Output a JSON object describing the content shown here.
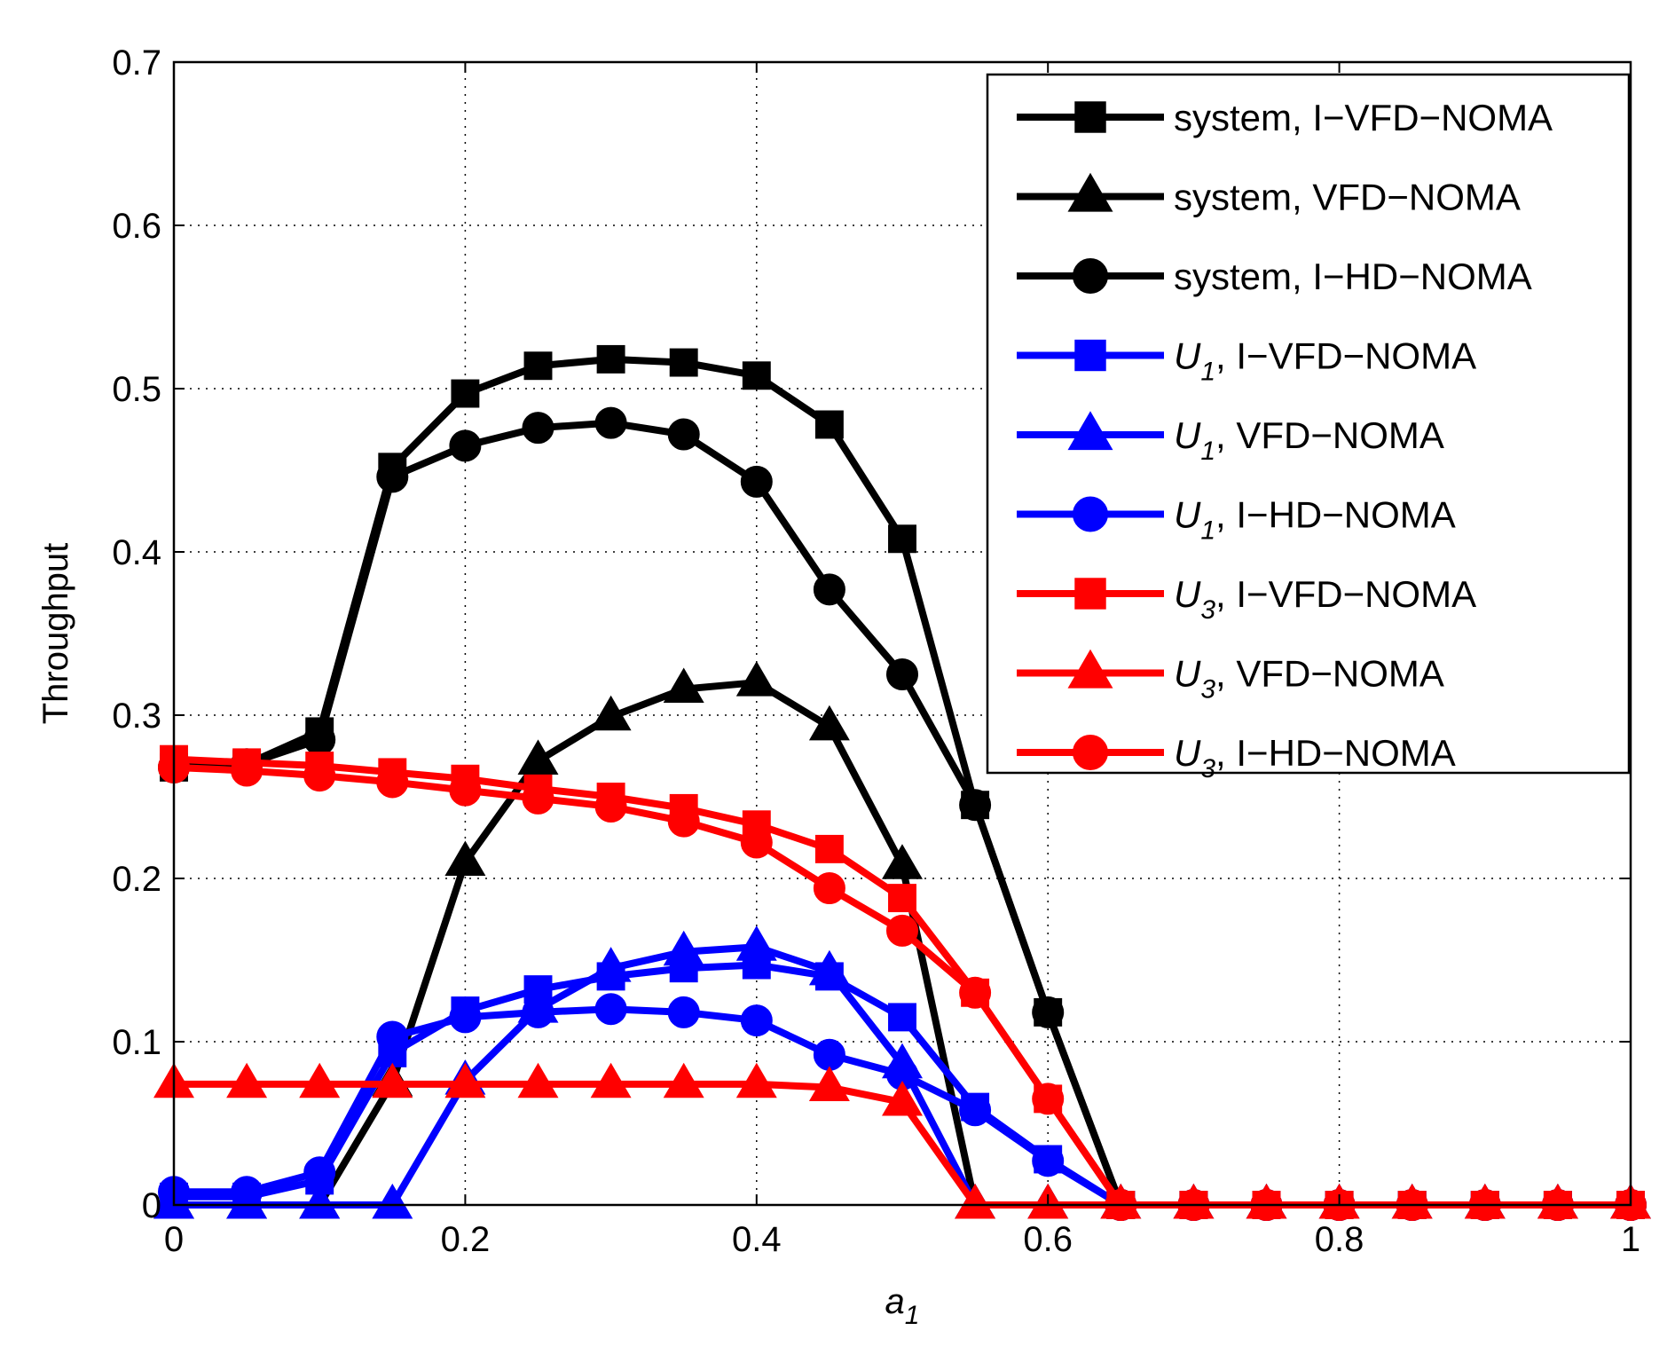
{
  "chart_data": {
    "type": "line",
    "title": "",
    "xlabel": "a",
    "xlabel_sub": "1",
    "ylabel": "Throughput",
    "xlim": [
      0,
      1
    ],
    "ylim": [
      0,
      0.7
    ],
    "grid": true,
    "legend_position": "top-right",
    "x_ticks": [
      0,
      0.2,
      0.4,
      0.6,
      0.8,
      1
    ],
    "x_tick_labels": [
      "0",
      "0.2",
      "0.4",
      "0.6",
      "0.8",
      "1"
    ],
    "y_ticks": [
      0,
      0.1,
      0.2,
      0.3,
      0.4,
      0.5,
      0.6,
      0.7
    ],
    "y_tick_labels": [
      "0",
      "0.1",
      "0.2",
      "0.3",
      "0.4",
      "0.5",
      "0.6",
      "0.7"
    ],
    "x": [
      0,
      0.05,
      0.1,
      0.15,
      0.2,
      0.25,
      0.3,
      0.35,
      0.4,
      0.45,
      0.5,
      0.55,
      0.6,
      0.65,
      0.7,
      0.75,
      0.8,
      0.85,
      0.9,
      0.95,
      1.0
    ],
    "series": [
      {
        "name": "system, I−VFD−NOMA",
        "user": "",
        "user_sub": "",
        "scheme": "",
        "color": "#000000",
        "marker": "square",
        "values": [
          0.268,
          0.27,
          0.29,
          0.452,
          0.497,
          0.514,
          0.518,
          0.516,
          0.508,
          0.478,
          0.408,
          0.245,
          0.118,
          0.0,
          0,
          0,
          0,
          0,
          0,
          0,
          0
        ]
      },
      {
        "name": "system, VFD−NOMA",
        "user": "",
        "user_sub": "",
        "scheme": "",
        "color": "#000000",
        "marker": "triangle",
        "values": [
          0.0,
          0.0,
          0.0,
          0.075,
          0.21,
          0.272,
          0.299,
          0.316,
          0.32,
          0.293,
          0.208,
          0.0,
          0.0,
          0.0,
          0,
          0,
          0,
          0,
          0,
          0,
          0
        ]
      },
      {
        "name": "system, I−HD−NOMA",
        "user": "",
        "user_sub": "",
        "scheme": "",
        "color": "#000000",
        "marker": "circle",
        "values": [
          0.268,
          0.27,
          0.285,
          0.446,
          0.465,
          0.476,
          0.479,
          0.472,
          0.443,
          0.377,
          0.325,
          0.245,
          0.118,
          0.0,
          0,
          0,
          0,
          0,
          0,
          0,
          0
        ]
      },
      {
        "name": "",
        "user": "U",
        "user_sub": "1",
        "scheme": ", I−VFD−NOMA",
        "color": "#0000ff",
        "marker": "square",
        "values": [
          0.005,
          0.005,
          0.015,
          0.093,
          0.119,
          0.132,
          0.14,
          0.145,
          0.147,
          0.14,
          0.115,
          0.06,
          0.028,
          0.0,
          0,
          0,
          0,
          0,
          0,
          0,
          0
        ]
      },
      {
        "name": "",
        "user": "U",
        "user_sub": "1",
        "scheme": ", VFD−NOMA",
        "color": "#0000ff",
        "marker": "triangle",
        "values": [
          0.0,
          0.0,
          0.0,
          0.0,
          0.076,
          0.12,
          0.145,
          0.155,
          0.158,
          0.143,
          0.086,
          0.0,
          0.0,
          0.0,
          0,
          0,
          0,
          0,
          0,
          0,
          0
        ]
      },
      {
        "name": "",
        "user": "U",
        "user_sub": "1",
        "scheme": ", I−HD−NOMA",
        "color": "#0000ff",
        "marker": "circle",
        "values": [
          0.008,
          0.008,
          0.02,
          0.103,
          0.115,
          0.118,
          0.12,
          0.118,
          0.113,
          0.092,
          0.08,
          0.058,
          0.027,
          0.0,
          0,
          0,
          0,
          0,
          0,
          0,
          0
        ]
      },
      {
        "name": "",
        "user": "U",
        "user_sub": "3",
        "scheme": ", I−VFD−NOMA",
        "color": "#ff0000",
        "marker": "square",
        "values": [
          0.273,
          0.271,
          0.269,
          0.265,
          0.261,
          0.255,
          0.25,
          0.243,
          0.233,
          0.218,
          0.188,
          0.13,
          0.065,
          0.0,
          0,
          0,
          0,
          0,
          0,
          0,
          0
        ]
      },
      {
        "name": "",
        "user": "U",
        "user_sub": "3",
        "scheme": ", VFD−NOMA",
        "color": "#ff0000",
        "marker": "triangle",
        "values": [
          0.074,
          0.074,
          0.074,
          0.074,
          0.074,
          0.074,
          0.074,
          0.074,
          0.074,
          0.072,
          0.063,
          0.0,
          0.0,
          0.0,
          0,
          0,
          0,
          0,
          0,
          0,
          0
        ]
      },
      {
        "name": "",
        "user": "U",
        "user_sub": "3",
        "scheme": ", I−HD−NOMA",
        "color": "#ff0000",
        "marker": "circle",
        "values": [
          0.268,
          0.266,
          0.263,
          0.259,
          0.254,
          0.249,
          0.244,
          0.235,
          0.222,
          0.194,
          0.168,
          0.13,
          0.065,
          0.0,
          0,
          0,
          0,
          0,
          0,
          0,
          0
        ]
      }
    ]
  }
}
